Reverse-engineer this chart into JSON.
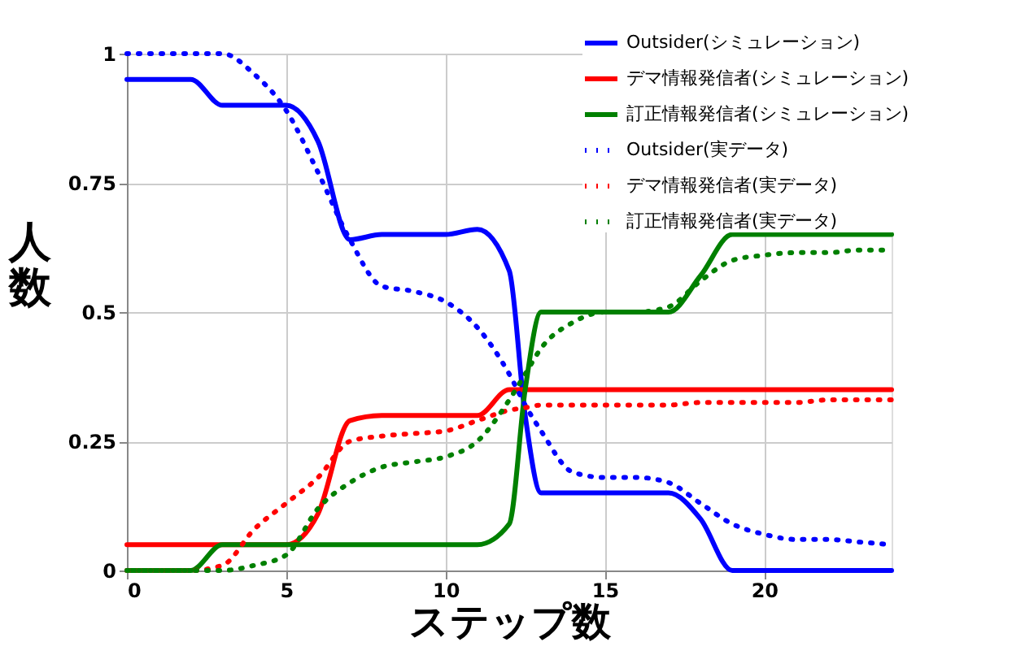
{
  "chart_data": {
    "type": "line",
    "xlabel": "ステップ数",
    "ylabel": "人数",
    "xlim": [
      0,
      24
    ],
    "xticks": [
      0,
      5,
      10,
      15,
      20
    ],
    "ylim": [
      0,
      1
    ],
    "yticks": [
      {
        "value": 0,
        "label": "0"
      },
      {
        "value": 0.25,
        "label": "0.25"
      },
      {
        "value": 0.5,
        "label": "0.5"
      },
      {
        "value": 0.75,
        "label": "0.75"
      },
      {
        "value": 1,
        "label": "1"
      }
    ],
    "grid": true,
    "legend": "top right",
    "marker": "none",
    "x": [
      0,
      1,
      2,
      3,
      4,
      5,
      6,
      7,
      8,
      9,
      10,
      11,
      12,
      12.5,
      13,
      14,
      15,
      16,
      17,
      18,
      19,
      20,
      21,
      22,
      23,
      24
    ],
    "series": [
      {
        "name": "Outsider(シミュレーション)",
        "color": "#0000ff",
        "line_style": "solid",
        "values": [
          0.95,
          0.95,
          0.95,
          0.9,
          0.9,
          0.9,
          0.83,
          0.64,
          0.65,
          0.65,
          0.65,
          0.66,
          0.58,
          0.3,
          0.15,
          0.15,
          0.15,
          0.15,
          0.15,
          0.1,
          0,
          0,
          0,
          0,
          0,
          0
        ]
      },
      {
        "name": "デマ情報発信者(シミュレーション)",
        "color": "#ff0000",
        "line_style": "solid",
        "values": [
          0.05,
          0.05,
          0.05,
          0.05,
          0.05,
          0.05,
          0.11,
          0.29,
          0.3,
          0.3,
          0.3,
          0.3,
          0.35,
          0.35,
          0.35,
          0.35,
          0.35,
          0.35,
          0.35,
          0.35,
          0.35,
          0.35,
          0.35,
          0.35,
          0.35,
          0.35
        ]
      },
      {
        "name": "訂正情報発信者(シミュレーション)",
        "color": "#008000",
        "line_style": "solid",
        "values": [
          0,
          0,
          0,
          0.05,
          0.05,
          0.05,
          0.05,
          0.05,
          0.05,
          0.05,
          0.05,
          0.05,
          0.09,
          0.35,
          0.5,
          0.5,
          0.5,
          0.5,
          0.5,
          0.57,
          0.65,
          0.65,
          0.65,
          0.65,
          0.65,
          0.65
        ]
      },
      {
        "name": "Outsider(実データ)",
        "color": "#0000ff",
        "line_style": "dotted",
        "values": [
          1,
          1,
          1,
          1,
          0.96,
          0.89,
          0.77,
          0.64,
          0.55,
          0.54,
          0.52,
          0.47,
          0.38,
          0.32,
          0.27,
          0.19,
          0.18,
          0.18,
          0.17,
          0.13,
          0.09,
          0.07,
          0.06,
          0.06,
          0.055,
          0.05
        ]
      },
      {
        "name": "デマ情報発信者(実データ)",
        "color": "#ff0000",
        "line_style": "dotted",
        "values": [
          0,
          0,
          0,
          0.01,
          0.08,
          0.13,
          0.18,
          0.25,
          0.26,
          0.265,
          0.27,
          0.29,
          0.31,
          0.315,
          0.32,
          0.32,
          0.32,
          0.32,
          0.32,
          0.325,
          0.325,
          0.325,
          0.325,
          0.33,
          0.33,
          0.33
        ]
      },
      {
        "name": "訂正情報発信者(実データ)",
        "color": "#008000",
        "line_style": "dotted",
        "values": [
          0,
          0,
          0,
          0,
          0.01,
          0.03,
          0.12,
          0.17,
          0.2,
          0.21,
          0.22,
          0.25,
          0.33,
          0.38,
          0.43,
          0.48,
          0.5,
          0.5,
          0.51,
          0.56,
          0.6,
          0.61,
          0.615,
          0.615,
          0.62,
          0.62
        ]
      }
    ]
  }
}
